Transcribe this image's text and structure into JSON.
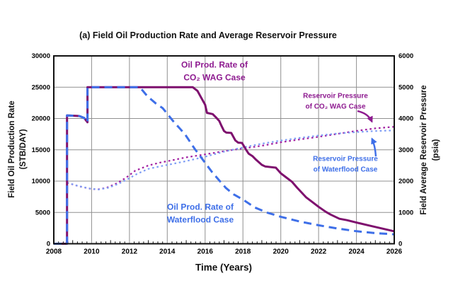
{
  "title": "(a) Field Oil Production Rate and Average Reservoir Pressure",
  "colors": {
    "wag_line": "#7E106E",
    "wag_text": "#8E1B90",
    "wag_dotted": "#A01DA0",
    "waterflood_line": "#3E6FE8",
    "waterflood_text": "#3E6FE8",
    "waterflood_dotted": "#7E9DF5",
    "grid": "#909090",
    "axis": "#111111"
  },
  "axes": {
    "x": {
      "title": "Time (Years)"
    },
    "y_left": {
      "title_line1": "Field Oil Production Rate",
      "title_line2": "(STB/DAY)"
    },
    "y_right": {
      "title_line1": "Field Average Reservoir Pressure",
      "title_line2": "(psia)"
    }
  },
  "annotations": {
    "wag_rate_label": {
      "line1": "Oil Prod. Rate of",
      "line2": "CO₂ WAG Case"
    },
    "waterflood_rate_label": {
      "line1": "Oil Prod. Rate of",
      "line2": "Waterflood Case"
    },
    "wag_pressure_label": {
      "line1": "Reservoir Pressure",
      "line2": "of CO₂ WAG Case"
    },
    "waterflood_pressure_label": {
      "line1": "Reservoir Pressure",
      "line2": "of Waterflood Case"
    }
  },
  "chart_data": {
    "type": "line",
    "title": "(a) Field Oil Production Rate and Average Reservoir Pressure",
    "x_axis": {
      "label": "Time (Years)",
      "range": [
        2008,
        2026
      ],
      "major_tick_step": 2,
      "minor_tick_step": 0.25,
      "ticks": [
        "2008",
        "2010",
        "2012",
        "2014",
        "2016",
        "2018",
        "2020",
        "2022",
        "2024",
        "2026"
      ]
    },
    "y_left": {
      "label": "Field Oil Production Rate (STB/DAY)",
      "range": [
        0,
        30000
      ],
      "tick_step": 5000,
      "ticks": [
        "0",
        "5000",
        "10000",
        "15000",
        "20000",
        "25000",
        "30000"
      ]
    },
    "y_right": {
      "label": "Field Average Reservoir Pressure (psia)",
      "range": [
        0,
        6000
      ],
      "tick_step": 1000,
      "ticks": [
        "0",
        "1000",
        "2000",
        "3000",
        "4000",
        "5000",
        "6000"
      ]
    },
    "grid": true,
    "legend": "in-plot text labels with arrows",
    "series": [
      {
        "id": "wag-pressure",
        "name": "Reservoir Pressure of CO2 WAG Case",
        "axis": "right",
        "unit": "psia",
        "style": "dotted",
        "color": "#A01DA0",
        "width": 2.2,
        "points": [
          [
            2008.7,
            1950
          ],
          [
            2009.3,
            1840
          ],
          [
            2009.9,
            1760
          ],
          [
            2010.3,
            1730
          ],
          [
            2010.8,
            1790
          ],
          [
            2011.3,
            1920
          ],
          [
            2011.8,
            2100
          ],
          [
            2012.3,
            2330
          ],
          [
            2013,
            2500
          ],
          [
            2013.6,
            2590
          ],
          [
            2014.2,
            2660
          ],
          [
            2015,
            2760
          ],
          [
            2016,
            2855
          ],
          [
            2017,
            2955
          ],
          [
            2018,
            3045
          ],
          [
            2019,
            3130
          ],
          [
            2020,
            3240
          ],
          [
            2021,
            3330
          ],
          [
            2022,
            3415
          ],
          [
            2023,
            3510
          ],
          [
            2024,
            3605
          ],
          [
            2025,
            3685
          ],
          [
            2026,
            3735
          ]
        ]
      },
      {
        "id": "waterflood-pressure",
        "name": "Reservoir Pressure of Waterflood Case",
        "axis": "right",
        "unit": "psia",
        "style": "dotted",
        "color": "#7E9DF5",
        "width": 2.2,
        "points": [
          [
            2008.7,
            1950
          ],
          [
            2009.3,
            1845
          ],
          [
            2009.9,
            1765
          ],
          [
            2010.35,
            1730
          ],
          [
            2010.9,
            1790
          ],
          [
            2011.4,
            1910
          ],
          [
            2011.9,
            2060
          ],
          [
            2012.4,
            2230
          ],
          [
            2013,
            2390
          ],
          [
            2013.6,
            2470
          ],
          [
            2014.2,
            2540
          ],
          [
            2015,
            2640
          ],
          [
            2016,
            2780
          ],
          [
            2017,
            2940
          ],
          [
            2018,
            3075
          ],
          [
            2019,
            3195
          ],
          [
            2020,
            3295
          ],
          [
            2021,
            3380
          ],
          [
            2022,
            3455
          ],
          [
            2023,
            3520
          ],
          [
            2024,
            3565
          ],
          [
            2025,
            3600
          ],
          [
            2026,
            3620
          ]
        ]
      },
      {
        "id": "wag-rate",
        "name": "Oil Prod. Rate of CO2 WAG Case",
        "axis": "left",
        "unit": "STB/DAY",
        "style": "solid",
        "color": "#7E106E",
        "width": 3,
        "points": [
          [
            2008,
            0
          ],
          [
            2008.7,
            0
          ],
          [
            2008.7,
            20500
          ],
          [
            2009.35,
            20400
          ],
          [
            2009.6,
            20100
          ],
          [
            2009.78,
            19400
          ],
          [
            2009.78,
            25000
          ],
          [
            2015.35,
            25000
          ],
          [
            2015.6,
            24400
          ],
          [
            2015.8,
            23300
          ],
          [
            2016,
            22200
          ],
          [
            2016.1,
            20900
          ],
          [
            2016.4,
            20700
          ],
          [
            2016.6,
            20100
          ],
          [
            2016.75,
            19600
          ],
          [
            2016.87,
            18800
          ],
          [
            2017,
            18000
          ],
          [
            2017.12,
            17750
          ],
          [
            2017.38,
            17700
          ],
          [
            2017.6,
            16500
          ],
          [
            2017.75,
            16150
          ],
          [
            2017.95,
            16100
          ],
          [
            2018.15,
            15100
          ],
          [
            2018.3,
            14400
          ],
          [
            2018.5,
            14000
          ],
          [
            2018.7,
            13400
          ],
          [
            2019,
            12600
          ],
          [
            2019.17,
            12350
          ],
          [
            2019.74,
            12150
          ],
          [
            2020,
            11250
          ],
          [
            2020.35,
            10450
          ],
          [
            2020.6,
            9880
          ],
          [
            2020.86,
            8970
          ],
          [
            2021.35,
            7390
          ],
          [
            2021.7,
            6590
          ],
          [
            2022,
            5900
          ],
          [
            2022.37,
            5120
          ],
          [
            2022.63,
            4670
          ],
          [
            2023.1,
            3990
          ],
          [
            2023.5,
            3760
          ],
          [
            2024.06,
            3350
          ],
          [
            2024.7,
            2890
          ],
          [
            2025.35,
            2440
          ],
          [
            2026,
            1990
          ]
        ]
      },
      {
        "id": "waterflood-rate",
        "name": "Oil Prod. Rate of Waterflood Case",
        "axis": "left",
        "unit": "STB/DAY",
        "style": "dashed",
        "color": "#3E6FE8",
        "width": 3,
        "points": [
          [
            2008,
            0
          ],
          [
            2008.7,
            0
          ],
          [
            2008.7,
            20500
          ],
          [
            2009.35,
            20400
          ],
          [
            2009.6,
            20100
          ],
          [
            2009.78,
            19400
          ],
          [
            2009.78,
            25000
          ],
          [
            2012.55,
            25000
          ],
          [
            2012.95,
            23550
          ],
          [
            2013.4,
            22400
          ],
          [
            2013.76,
            21650
          ],
          [
            2014.32,
            19550
          ],
          [
            2014.94,
            17470
          ],
          [
            2015.44,
            15200
          ],
          [
            2016,
            12930
          ],
          [
            2016.37,
            11420
          ],
          [
            2016.81,
            9900
          ],
          [
            2017.1,
            8900
          ],
          [
            2017.5,
            7900
          ],
          [
            2018,
            7050
          ],
          [
            2018.62,
            5800
          ],
          [
            2019.3,
            4950
          ],
          [
            2020,
            4300
          ],
          [
            2021,
            3550
          ],
          [
            2022,
            2950
          ],
          [
            2023,
            2430
          ],
          [
            2024,
            2000
          ],
          [
            2025,
            1700
          ],
          [
            2026,
            1500
          ]
        ]
      }
    ]
  }
}
